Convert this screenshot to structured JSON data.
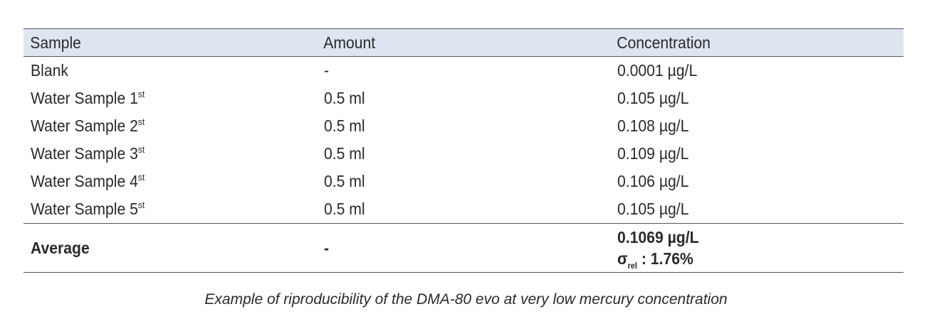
{
  "table": {
    "headers": [
      "Sample",
      "Amount",
      "Concentration"
    ],
    "rows": [
      {
        "sample": "Blank",
        "sup": "",
        "amount": "-",
        "concentration": "0.0001 µg/L"
      },
      {
        "sample": "Water Sample 1",
        "sup": "st",
        "amount": "0.5 ml",
        "concentration": "0.105 µg/L"
      },
      {
        "sample": "Water Sample 2",
        "sup": "st",
        "amount": "0.5 ml",
        "concentration": "0.108 µg/L"
      },
      {
        "sample": "Water Sample 3",
        "sup": "st",
        "amount": "0.5 ml",
        "concentration": "0.109 µg/L"
      },
      {
        "sample": "Water Sample 4",
        "sup": "st",
        "amount": "0.5 ml",
        "concentration": "0.106 µg/L"
      },
      {
        "sample": "Water Sample 5",
        "sup": "st",
        "amount": "0.5 ml",
        "concentration": "0.105 µg/L"
      }
    ],
    "average": {
      "label": "Average",
      "amount": "-",
      "concentration": "0.1069 µg/L",
      "sigma_symbol": "σ",
      "sigma_sub": "rel",
      "sigma_value": ": 1.76%"
    }
  },
  "caption": "Example of riproducibility of the DMA-80 evo at very low mercury concentration"
}
